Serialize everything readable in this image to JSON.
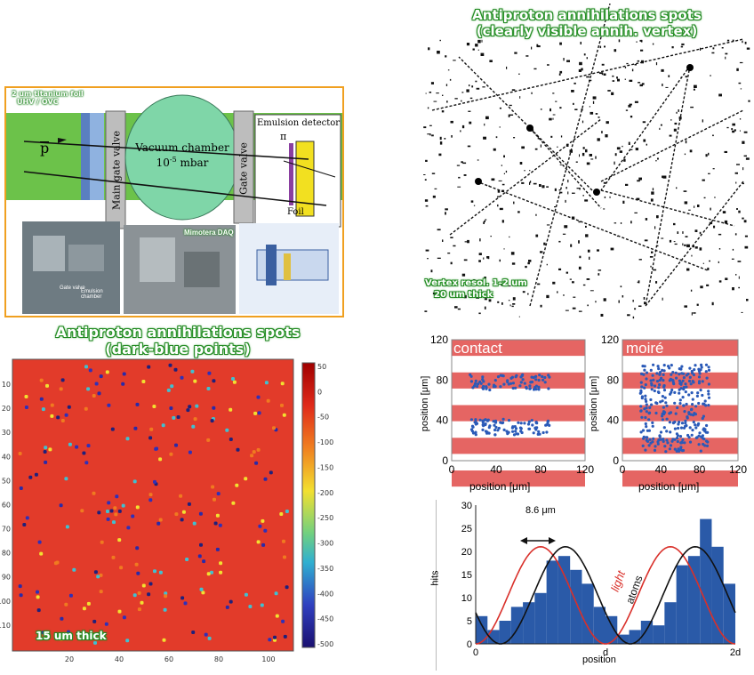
{
  "setup": {
    "foil_label_1": "2 um titanium foil",
    "foil_label_2": "UHV / OVC",
    "pbar": "p",
    "main_gate_valve": "Main gate valve",
    "vacuum_chamber_1": "Vacuum chamber",
    "vacuum_chamber_2": "10",
    "vacuum_exp": "-5",
    "vacuum_unit": " mbar",
    "gate_valve": "Gate valve",
    "emulsion_detector": "Emulsion detector",
    "pi": "π",
    "foil": "Foil",
    "mimotera": "Mimotera DAQ",
    "photo_label_1": "Gate valve",
    "photo_label_2": "Emulsion chamber",
    "colors": {
      "border": "#f0a020",
      "beam_pipe": "#6cc24a",
      "chamber": "#7fd6a8",
      "foil_bar": "#8a3fa0",
      "detector": "#f2e020"
    }
  },
  "vertex_panel": {
    "title_1": "Antiproton annihilations spots",
    "title_2": "(clearly visible annih. vertex)",
    "note_1": "Vertex resol. 1-2 um",
    "note_2": "20 um thick"
  },
  "heatmap_panel": {
    "title_1": "Antiproton annihilations spots",
    "title_2": "(dark-blue points)",
    "note": "15 um thick",
    "y_ticks": [
      "10",
      "20",
      "30",
      "40",
      "50",
      "60",
      "70",
      "80",
      "90",
      "100",
      "110"
    ],
    "x_ticks": [
      "20",
      "40",
      "60",
      "80",
      "100"
    ],
    "colorbar_ticks": [
      "50",
      "0",
      "-50",
      "-100",
      "-150",
      "-200",
      "-250",
      "-300",
      "-350",
      "-400",
      "-450",
      "-500"
    ],
    "colors": {
      "background": "#e23b2a"
    }
  },
  "fringe_plots": [
    {
      "label": "contact",
      "xlabel": "position [μm]",
      "ylabel": "position [μm]",
      "y_ticks": [
        "0",
        "40",
        "80",
        "120"
      ],
      "x_ticks": [
        "0",
        "40",
        "80",
        "120"
      ]
    },
    {
      "label": "moiré",
      "xlabel": "position [μm]",
      "ylabel": "position [μm]",
      "y_ticks": [
        "0",
        "40",
        "80",
        "120"
      ],
      "x_ticks": [
        "0",
        "40",
        "80",
        "120"
      ]
    }
  ],
  "chart_data": {
    "type": "bar",
    "xlabel": "position",
    "ylabel": "hits",
    "ylim": [
      0,
      30
    ],
    "x_ticks": [
      "0",
      "d",
      "2d"
    ],
    "y_ticks": [
      "0",
      "5",
      "10",
      "15",
      "20",
      "25",
      "30"
    ],
    "annotation": "8.6 μm",
    "series_labels": {
      "light": "light",
      "atoms": "atoms"
    },
    "values": [
      6,
      3,
      5,
      8,
      9,
      11,
      18,
      19,
      16,
      13,
      8,
      6,
      2,
      3,
      5,
      4,
      9,
      17,
      19,
      27,
      21,
      13
    ],
    "colors": {
      "bars": "#2a5aa8",
      "light": "#d9302a",
      "atoms": "#111111"
    }
  }
}
